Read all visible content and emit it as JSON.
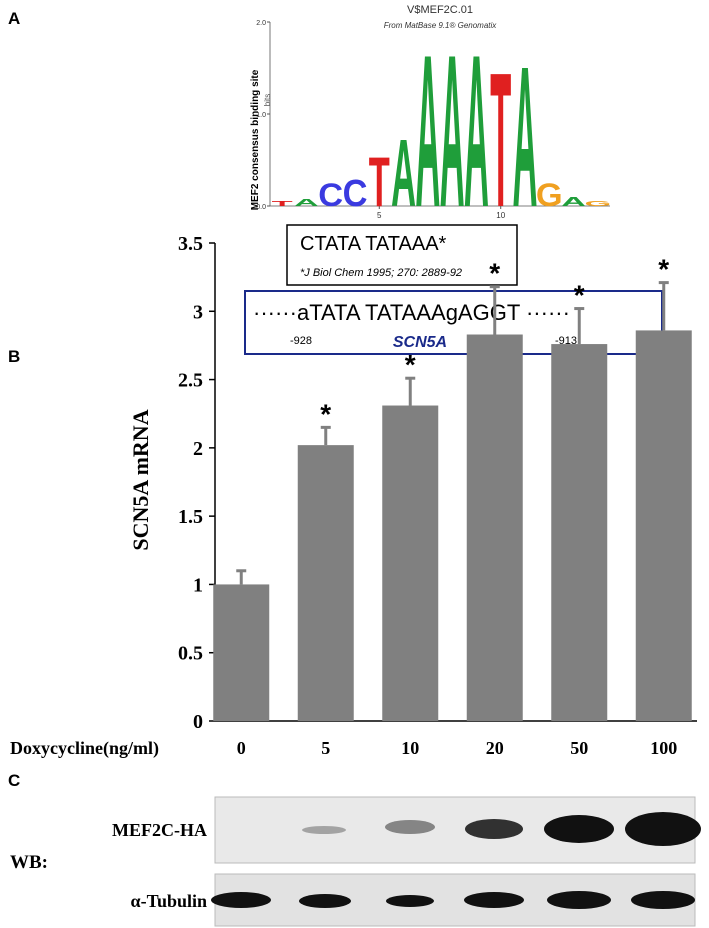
{
  "panel_a": {
    "label": "A",
    "logo": {
      "title": "V$MEF2C.01",
      "subtitle": "From MatBase 9.1® Genomatix",
      "y_label": "MEF2 consensus binding site",
      "y_unit": "bits",
      "ylim": [
        0,
        2
      ],
      "yticks": [
        {
          "value": 0,
          "label": "0.0"
        },
        {
          "value": 1,
          "label": "1.0"
        },
        {
          "value": 2,
          "label": "2.0"
        }
      ],
      "xlim": [
        0.5,
        14.5
      ],
      "xticks": [
        5,
        10
      ],
      "letters": [
        {
          "position": 1,
          "letter": "T",
          "bits": 0.06
        },
        {
          "position": 2,
          "letter": "A",
          "bits": 0.08
        },
        {
          "position": 3,
          "letter": "C",
          "bits": 0.25
        },
        {
          "position": 4,
          "letter": "C",
          "bits": 0.3
        },
        {
          "position": 5,
          "letter": "T",
          "bits": 0.55
        },
        {
          "position": 6,
          "letter": "A",
          "bits": 0.75
        },
        {
          "position": 7,
          "letter": "A",
          "bits": 1.7
        },
        {
          "position": 8,
          "letter": "A",
          "bits": 1.7
        },
        {
          "position": 9,
          "letter": "A",
          "bits": 1.7
        },
        {
          "position": 10,
          "letter": "T",
          "bits": 1.5
        },
        {
          "position": 11,
          "letter": "A",
          "bits": 1.57
        },
        {
          "position": 12,
          "letter": "G",
          "bits": 0.25
        },
        {
          "position": 13,
          "letter": "A",
          "bits": 0.1
        },
        {
          "position": 14,
          "letter": "G",
          "bits": 0.06
        }
      ],
      "colors": {
        "A": "#1f9e3a",
        "C": "#3a3ae0",
        "G": "#f0a020",
        "T": "#e02020"
      }
    },
    "consensus": "CTATA TATAAA*",
    "citation": "*J Biol Chem 1995; 270: 2889-92",
    "promoter": "······aTATA TATAAAgAGGT ······",
    "start": "-928",
    "gene": "SCN5A",
    "end": "-913"
  },
  "chart_data": {
    "type": "bar",
    "label": "B",
    "y_label": "SCN5A mRNA",
    "x_label": "Doxycycline(ng/ml)",
    "categories": [
      "0",
      "5",
      "10",
      "20",
      "50",
      "100"
    ],
    "values": [
      1.0,
      2.02,
      2.31,
      2.83,
      2.76,
      2.86
    ],
    "errors": [
      0.1,
      0.13,
      0.2,
      0.35,
      0.26,
      0.35
    ],
    "significance": [
      null,
      "*",
      "*",
      "*",
      "*",
      "*"
    ],
    "color": "#808080",
    "ylim": [
      0,
      3.5
    ],
    "yticks": [
      0,
      0.5,
      1,
      1.5,
      2,
      2.5,
      3,
      3.5
    ]
  },
  "panel_c": {
    "label": "C",
    "method": "WB:",
    "rows": [
      "MEF2C-HA",
      "α-Tubulin"
    ]
  }
}
